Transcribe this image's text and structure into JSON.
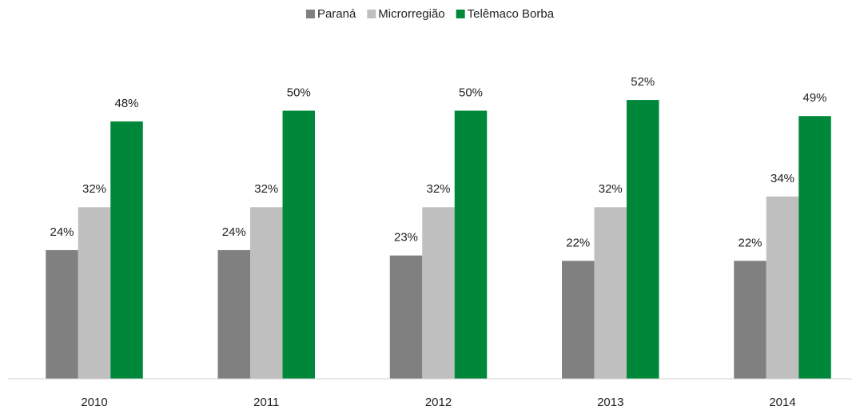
{
  "chart_data": {
    "type": "bar",
    "categories": [
      "2010",
      "2011",
      "2012",
      "2013",
      "2014"
    ],
    "series": [
      {
        "name": "Paraná",
        "color": "#808080",
        "values": [
          24,
          24,
          23,
          22,
          22
        ],
        "value_labels": [
          "24%",
          "24%",
          "23%",
          "22%",
          "22%"
        ]
      },
      {
        "name": "Microrregião",
        "color": "#bfbfbf",
        "values": [
          32,
          32,
          32,
          32,
          34
        ],
        "value_labels": [
          "32%",
          "32%",
          "32%",
          "32%",
          "34%"
        ]
      },
      {
        "name": "Telêmaco Borba",
        "color": "#00883a",
        "values": [
          48,
          50,
          50,
          52,
          49
        ],
        "value_labels": [
          "48%",
          "50%",
          "50%",
          "52%",
          "49%"
        ]
      }
    ],
    "ylim": [
      0,
      60
    ],
    "legend": "top"
  }
}
